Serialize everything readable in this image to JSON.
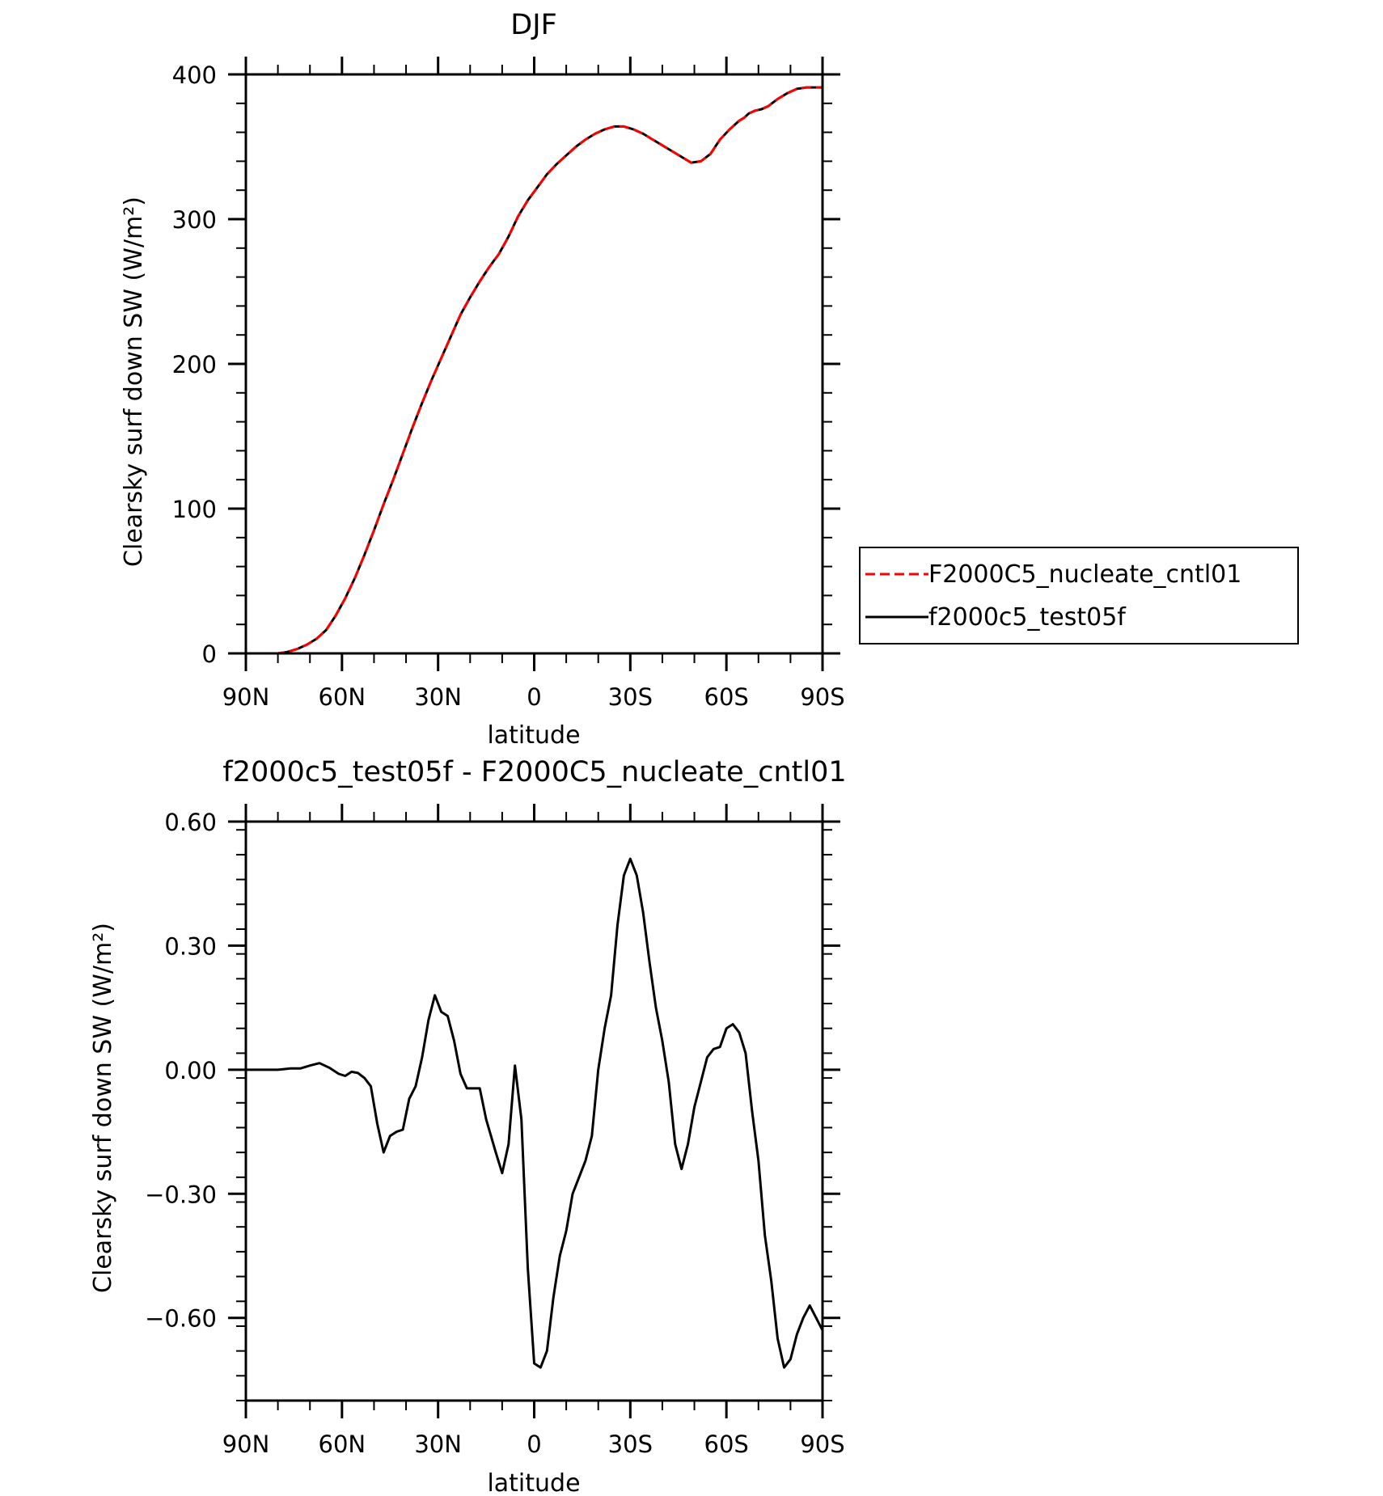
{
  "chart_data": [
    {
      "type": "line",
      "title": "DJF",
      "xlabel": "latitude",
      "ylabel": "Clearsky surf down SW (W/m²)",
      "xlim": [
        -90,
        90
      ],
      "ylim": [
        0,
        400
      ],
      "x_ticks": [
        -90,
        -60,
        -30,
        0,
        30,
        60,
        90
      ],
      "x_tick_labels": [
        "90N",
        "60N",
        "30N",
        "0",
        "30S",
        "60S",
        "90S"
      ],
      "y_ticks": [
        0,
        100,
        200,
        300,
        400
      ],
      "y_tick_labels": [
        "0",
        "100",
        "200",
        "300",
        "400"
      ],
      "grid": false,
      "legend": "right",
      "x": [
        -90,
        -85,
        -80,
        -77,
        -74,
        -71,
        -68,
        -65,
        -62,
        -59,
        -56,
        -53,
        -50,
        -47,
        -44,
        -41,
        -38,
        -35,
        -32,
        -29,
        -26,
        -23,
        -20,
        -17,
        -14,
        -11,
        -8,
        -5,
        -2,
        1,
        4,
        7,
        10,
        13,
        16,
        19,
        22,
        25,
        28,
        31,
        34,
        37,
        40,
        43,
        46,
        49,
        52,
        55,
        58,
        61,
        62.5,
        64,
        65.5,
        67,
        69,
        71,
        73,
        76,
        79,
        82,
        85,
        88,
        90
      ],
      "series": [
        {
          "name": "F2000C5_nucleate_cntl01",
          "color": "#ff0000",
          "dash": "dashed",
          "values": [
            0,
            0,
            0,
            1,
            3,
            6,
            10,
            16,
            26,
            38,
            52,
            68,
            85,
            103,
            120,
            138,
            156,
            173,
            189,
            204,
            219,
            234,
            246,
            257,
            267,
            276,
            288,
            302,
            313,
            322,
            331,
            338,
            344,
            350,
            355,
            359,
            362,
            364,
            364,
            362,
            359,
            355,
            351,
            347,
            343,
            339,
            340,
            345,
            355,
            362,
            365,
            368,
            370,
            373,
            375,
            376,
            378,
            383,
            387,
            390,
            391,
            391,
            391
          ],
          "role": "overlay"
        },
        {
          "name": "f2000c5_test05f",
          "color": "#000000",
          "dash": "solid",
          "values": [
            0,
            0,
            0,
            1,
            3,
            6,
            10,
            16,
            26,
            38,
            52,
            68,
            85,
            103,
            120,
            138,
            156,
            173,
            189,
            204,
            219,
            234,
            246,
            257,
            267,
            276,
            288,
            302,
            313,
            322,
            331,
            338,
            344,
            350,
            355,
            359,
            362,
            364,
            364,
            362,
            359,
            355,
            351,
            347,
            343,
            339,
            340,
            345,
            355,
            362,
            365,
            368,
            370,
            373,
            375,
            376,
            378,
            383,
            387,
            390,
            391,
            391,
            391
          ]
        }
      ]
    },
    {
      "type": "line",
      "title": "f2000c5_test05f - F2000C5_nucleate_cntl01",
      "xlabel": "latitude",
      "ylabel": "Clearsky surf down SW (W/m²)",
      "xlim": [
        -90,
        90
      ],
      "ylim": [
        -0.8,
        0.6
      ],
      "x_ticks": [
        -90,
        -60,
        -30,
        0,
        30,
        60,
        90
      ],
      "x_tick_labels": [
        "90N",
        "60N",
        "30N",
        "0",
        "30S",
        "60S",
        "90S"
      ],
      "y_ticks": [
        -0.6,
        -0.3,
        0.0,
        0.3,
        0.6
      ],
      "y_tick_labels": [
        "−0.60",
        "−0.30",
        "0.00",
        "0.30",
        "0.60"
      ],
      "grid": false,
      "x": [
        -90,
        -80,
        -76,
        -73,
        -70,
        -67,
        -64,
        -61,
        -59,
        -57,
        -55,
        -53,
        -51,
        -49,
        -47,
        -45,
        -43,
        -41,
        -39,
        -37,
        -35,
        -33,
        -31,
        -29,
        -27,
        -25,
        -23,
        -21,
        -19,
        -17,
        -15,
        -12,
        -10,
        -8,
        -6,
        -4,
        -2,
        0,
        2,
        4,
        6,
        8,
        10,
        12,
        14,
        16,
        18,
        20,
        22,
        24,
        26,
        28,
        30,
        32,
        34,
        36,
        38,
        40,
        42,
        44,
        46,
        48,
        50,
        52,
        54,
        56,
        58,
        60,
        62,
        64,
        66,
        68,
        70,
        72,
        74,
        76,
        78,
        80,
        82,
        84,
        86,
        88,
        90
      ],
      "series": [
        {
          "name": "",
          "color": "#000000",
          "dash": "solid",
          "values": [
            0.0,
            0.0,
            0.003,
            0.003,
            0.01,
            0.016,
            0.005,
            -0.01,
            -0.015,
            -0.005,
            -0.008,
            -0.02,
            -0.04,
            -0.13,
            -0.2,
            -0.16,
            -0.15,
            -0.145,
            -0.07,
            -0.04,
            0.03,
            0.12,
            0.18,
            0.14,
            0.13,
            0.07,
            -0.01,
            -0.045,
            -0.045,
            -0.045,
            -0.12,
            -0.2,
            -0.25,
            -0.18,
            0.01,
            -0.12,
            -0.48,
            -0.71,
            -0.72,
            -0.68,
            -0.55,
            -0.45,
            -0.39,
            -0.3,
            -0.26,
            -0.22,
            -0.16,
            0.0,
            0.1,
            0.18,
            0.35,
            0.47,
            0.51,
            0.47,
            0.38,
            0.26,
            0.15,
            0.07,
            -0.03,
            -0.18,
            -0.24,
            -0.18,
            -0.09,
            -0.03,
            0.03,
            0.05,
            0.055,
            0.1,
            0.11,
            0.09,
            0.04,
            -0.1,
            -0.22,
            -0.4,
            -0.51,
            -0.65,
            -0.72,
            -0.7,
            -0.64,
            -0.6,
            -0.57,
            -0.6,
            -0.63
          ]
        }
      ]
    }
  ]
}
